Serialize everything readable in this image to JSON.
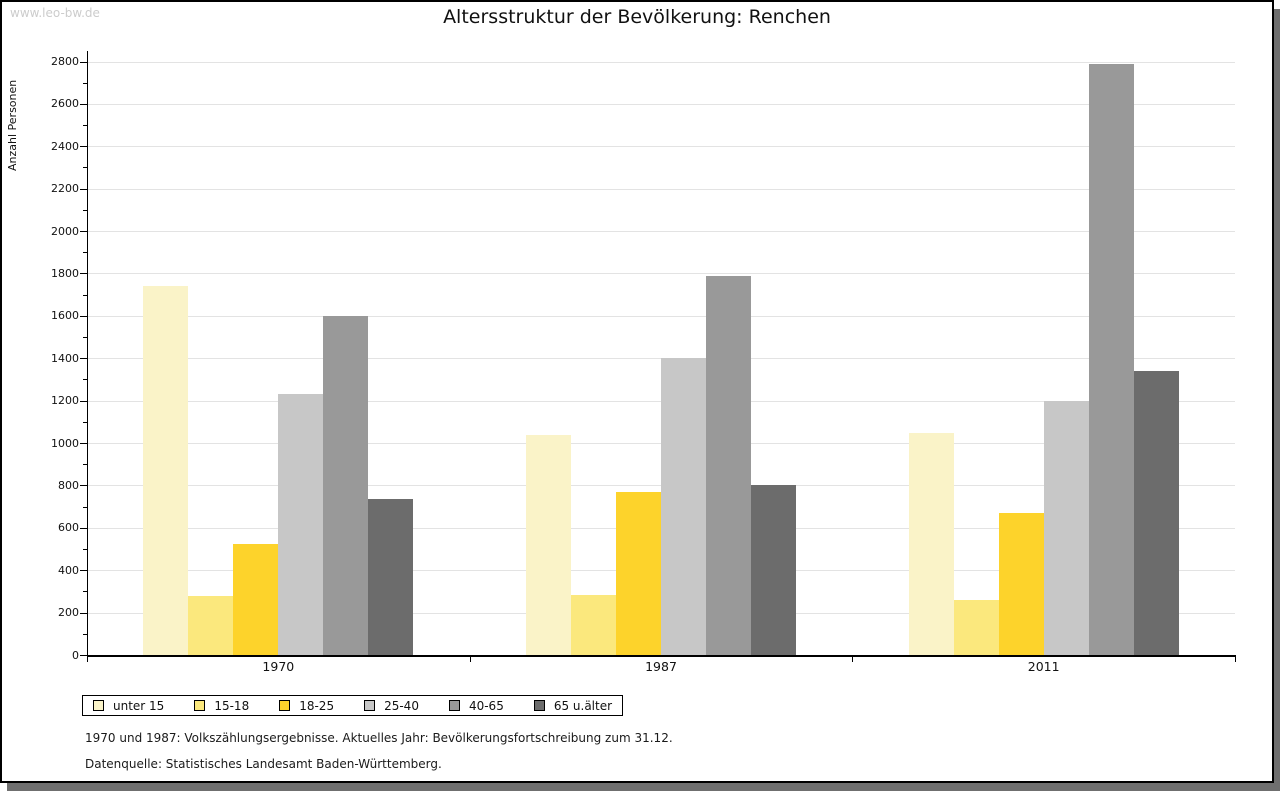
{
  "watermark": "www.leo-bw.de",
  "title": "Altersstruktur der Bevölkerung: Renchen",
  "chart_data": {
    "type": "bar",
    "title": "Altersstruktur der Bevölkerung: Renchen",
    "xlabel": "",
    "ylabel": "Anzahl Personen",
    "categories": [
      "1970",
      "1987",
      "2011"
    ],
    "series": [
      {
        "name": "unter 15",
        "color": "#faf3c8",
        "values": [
          1740,
          1040,
          1045
        ]
      },
      {
        "name": "15-18",
        "color": "#fbe87d",
        "values": [
          280,
          285,
          260
        ]
      },
      {
        "name": "18-25",
        "color": "#fdd32b",
        "values": [
          525,
          770,
          670
        ]
      },
      {
        "name": "25-40",
        "color": "#c7c7c7",
        "values": [
          1230,
          1400,
          1200
        ]
      },
      {
        "name": "40-65",
        "color": "#999999",
        "values": [
          1600,
          1790,
          2790
        ]
      },
      {
        "name": "65 u.älter",
        "color": "#6c6c6c",
        "values": [
          735,
          800,
          1340
        ]
      }
    ],
    "ylim": [
      0,
      2800
    ],
    "ytick_step": 200,
    "yticks": [
      0,
      200,
      400,
      600,
      800,
      1000,
      1200,
      1400,
      1600,
      1800,
      2000,
      2200,
      2400,
      2600,
      2800
    ],
    "grid": true,
    "legend_position": "bottom-left"
  },
  "footer": {
    "line1": "1970 und 1987: Volkszählungsergebnisse. Aktuelles Jahr: Bevölkerungsfortschreibung zum 31.12.",
    "line2": "Datenquelle: Statistisches Landesamt Baden-Württemberg."
  }
}
